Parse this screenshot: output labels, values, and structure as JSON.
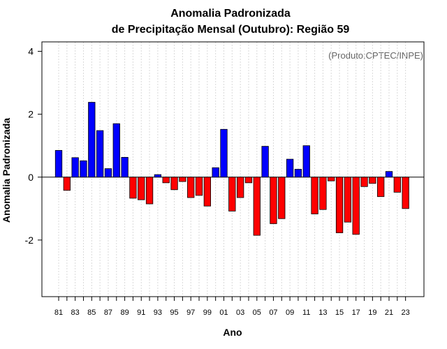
{
  "chart_data": {
    "type": "bar",
    "title_line1": "Anomalia Padronizada",
    "title_line2": "de Precipitação Mensal (Outubro): Região 59",
    "xlabel": "Ano",
    "ylabel": "Anomalia Padronizada",
    "credit": "(Produto:CPTEC/INPE)",
    "ylim": [
      -3.8,
      4.3
    ],
    "yticks": [
      -2,
      0,
      2,
      4
    ],
    "ytick_labels": [
      "-2",
      "0",
      "2",
      "4"
    ],
    "categories": [
      "81",
      "82",
      "83",
      "84",
      "85",
      "86",
      "87",
      "88",
      "89",
      "90",
      "91",
      "92",
      "93",
      "94",
      "95",
      "96",
      "97",
      "98",
      "99",
      "00",
      "01",
      "02",
      "03",
      "04",
      "05",
      "06",
      "07",
      "08",
      "09",
      "10",
      "11",
      "12",
      "13",
      "14",
      "15",
      "16",
      "17",
      "18",
      "19",
      "20",
      "21",
      "22",
      "23"
    ],
    "xtick_labels": [
      "81",
      "83",
      "85",
      "87",
      "89",
      "91",
      "93",
      "95",
      "97",
      "99",
      "01",
      "03",
      "05",
      "07",
      "09",
      "11",
      "13",
      "15",
      "17",
      "19",
      "21",
      "23"
    ],
    "values": [
      0.85,
      -0.42,
      0.62,
      0.52,
      2.38,
      1.48,
      0.27,
      1.7,
      0.63,
      -0.67,
      -0.72,
      -0.85,
      0.08,
      -0.18,
      -0.4,
      -0.14,
      -0.65,
      -0.58,
      -0.92,
      0.3,
      1.52,
      -1.08,
      -0.65,
      -0.18,
      -1.85,
      0.98,
      -1.48,
      -1.32,
      0.57,
      0.25,
      1.0,
      -1.17,
      -1.03,
      -0.12,
      -1.77,
      -1.43,
      -1.82,
      -0.3,
      -0.2,
      -0.62,
      0.18,
      -0.48,
      -1.0
    ],
    "colors": {
      "positive": "#0000ff",
      "negative": "#ff0000",
      "grid": "#d9d9d9",
      "axis": "#000000"
    }
  }
}
